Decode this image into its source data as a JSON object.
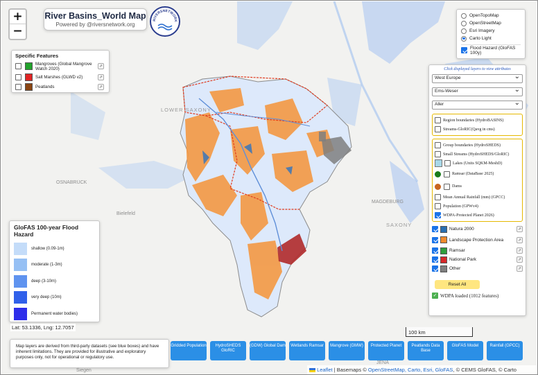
{
  "map": {
    "title": "River Basins_World Map",
    "subtitle": "Powered by @riversnetwork.org",
    "logo_text": "RIVERSNETWORK.ORG",
    "zoom_in": "+",
    "zoom_out": "−",
    "labels": {
      "place_sachsen": "LOWER SAXONY",
      "place_saxony": "SAXONY",
      "city_osnabruck": "OSNABRÜCK",
      "city_bielefeld": "Bielefeld",
      "city_magdeburg": "MAGDEBURG",
      "city_jena": "JENA",
      "city_siegen": "Siegen"
    }
  },
  "specific_features": {
    "heading": "Specific Features",
    "items": [
      {
        "label": "Mangroves (Global Mangrove Watch 2020)",
        "color": "#22a22c"
      },
      {
        "label": "Salt Marshes (GLWD v2)",
        "color": "#e02424"
      },
      {
        "label": "Peatlands",
        "color": "#8b4513"
      }
    ]
  },
  "flood_legend": {
    "heading": "GloFAS 100-year Flood Hazard",
    "items": [
      {
        "label": "shallow (0.09-1m)",
        "color": "#c4dcf9"
      },
      {
        "label": "moderate (1-3m)",
        "color": "#96c0f4"
      },
      {
        "label": "deep (3-10m)",
        "color": "#5f93ef"
      },
      {
        "label": "very deep (10m)",
        "color": "#3060ea"
      },
      {
        "label": "Permanent water bodies)",
        "color": "#2e2eea"
      }
    ]
  },
  "latlng": "Lat: 53.1336, Lng: 12.7057",
  "basemaps": {
    "options": [
      "OpenTopoMap",
      "OpenStreetMap",
      "Esri Imagery",
      "Carto Light"
    ],
    "selected_index": 3,
    "overlay": "Flood Hazard (GloFAS 100y)"
  },
  "layers_panel": {
    "hint": "Click displayed layers to view attributes",
    "selects": [
      "West Europe",
      "Ems-Weser",
      "Aller"
    ],
    "box1": [
      "Region boundaries (HydroBASINS)",
      "Streams-GloRIC(Qavg in cms)"
    ],
    "box2": {
      "group": "Group boundaries (HydroSHEDS)",
      "small_streams": "Small Streams (HydroSHEDS/GloRIC)",
      "lakes": "Lakes (Units SQKM-MeshD)",
      "ramsar": "Ramsar (DataBase 2025)",
      "dams": "Dams",
      "rainfall": "Mean Annual Rainfall (mm) (GPCC)",
      "population": "Population (GPWv4)",
      "wdpa": "WDPA-Protected Planet 2026)"
    },
    "wdpa_items": [
      {
        "label": "Natura 2000",
        "color": "#2a6fb0"
      },
      {
        "label": "Landscape Protection Area",
        "color": "#f08a2c"
      },
      {
        "label": "Ramsar",
        "color": "#2e9e3c"
      },
      {
        "label": "National Park",
        "color": "#d62728"
      },
      {
        "label": "Other",
        "color": "#7f7f7f"
      }
    ],
    "reset": "Reset All",
    "loaded": "WDPA loaded (1012 features)"
  },
  "scale": "100 km",
  "disclaimer": "Map layers are derived from third-party datasets (see blue boxes) and have inherent limitations. They are provided for illustrative and exploratory purposes only, not for operational or regulatory use.",
  "buttons": [
    "Gridded Population",
    "HydroSHEDS GloRIC",
    "(GDW) Global Dam",
    "Wetlands Ramsar",
    "Mangrove (GMW)",
    "Protected Planet",
    "Peatlands Data Base",
    "GloFAS Model",
    "Rainfall (GPCC)"
  ],
  "attribution": {
    "leaflet": "Leaflet",
    "sep": " | Basemaps © ",
    "links": "OpenStreetMap, Carto, Esri, GloFAS",
    "rest": ", © CEMS GloFAS, © Carto"
  }
}
